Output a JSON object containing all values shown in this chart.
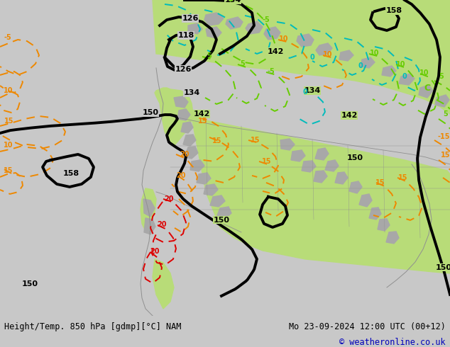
{
  "title_left": "Height/Temp. 850 hPa [gdmp][°C] NAM",
  "title_right": "Mo 23-09-2024 12:00 UTC (00+12)",
  "copyright": "© weatheronline.co.uk",
  "bg_color": "#c8c8c8",
  "green_color": "#b8dc78",
  "gray_color": "#a8a8a8",
  "white_bg": "#ffffff",
  "fig_width": 6.34,
  "fig_height": 4.9,
  "dpi": 100,
  "title_fontsize": 8.5,
  "copyright_color": "#0000bb",
  "bottom_text_color": "#000000",
  "bottom_bar_color": "#ffffff"
}
